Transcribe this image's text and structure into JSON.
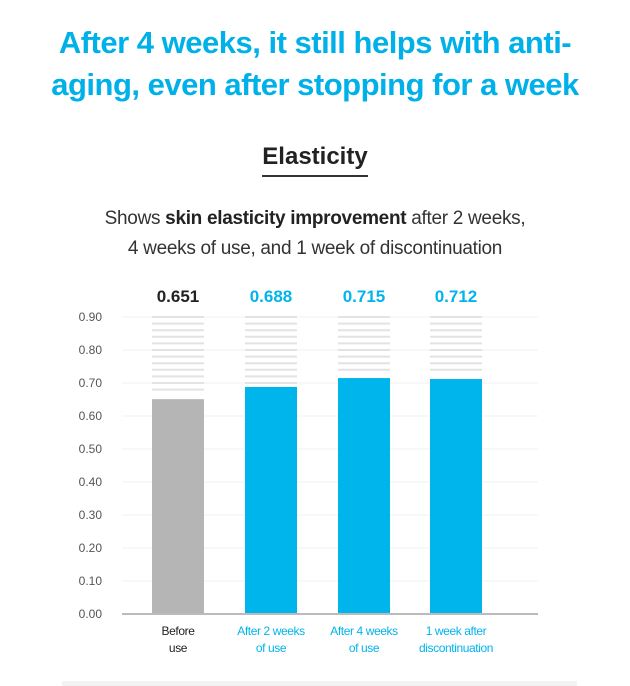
{
  "headline": {
    "line1": "After 4 weeks, it still helps with anti-",
    "line2": "aging, even after stopping for a week"
  },
  "subtitle": "Elasticity",
  "description": {
    "prefix": "Shows ",
    "bold": "skin elasticity improvement",
    "suffix": " after 2 weeks,",
    "line2": "4 weeks of use, and 1 week of discontinuation"
  },
  "colors": {
    "accent": "#00b4ec",
    "baseline": "#b5b5b5",
    "stripe": "#e3e3e3",
    "text_dark": "#222222"
  },
  "chart_data": {
    "type": "bar",
    "title": "Elasticity",
    "categories": [
      [
        "Before",
        "use"
      ],
      [
        "After 2 weeks",
        "of use"
      ],
      [
        "After 4 weeks",
        "of use"
      ],
      [
        "1 week after",
        "discontinuation"
      ]
    ],
    "values": [
      0.651,
      0.688,
      0.715,
      0.712
    ],
    "value_labels": [
      "0.651",
      "0.688",
      "0.715",
      "0.712"
    ],
    "ylim": [
      0,
      0.9
    ],
    "yticks": [
      "0.00",
      "0.10",
      "0.20",
      "0.30",
      "0.40",
      "0.50",
      "0.60",
      "0.70",
      "0.80",
      "0.90"
    ],
    "grid": true,
    "xlabel": "",
    "ylabel": ""
  }
}
